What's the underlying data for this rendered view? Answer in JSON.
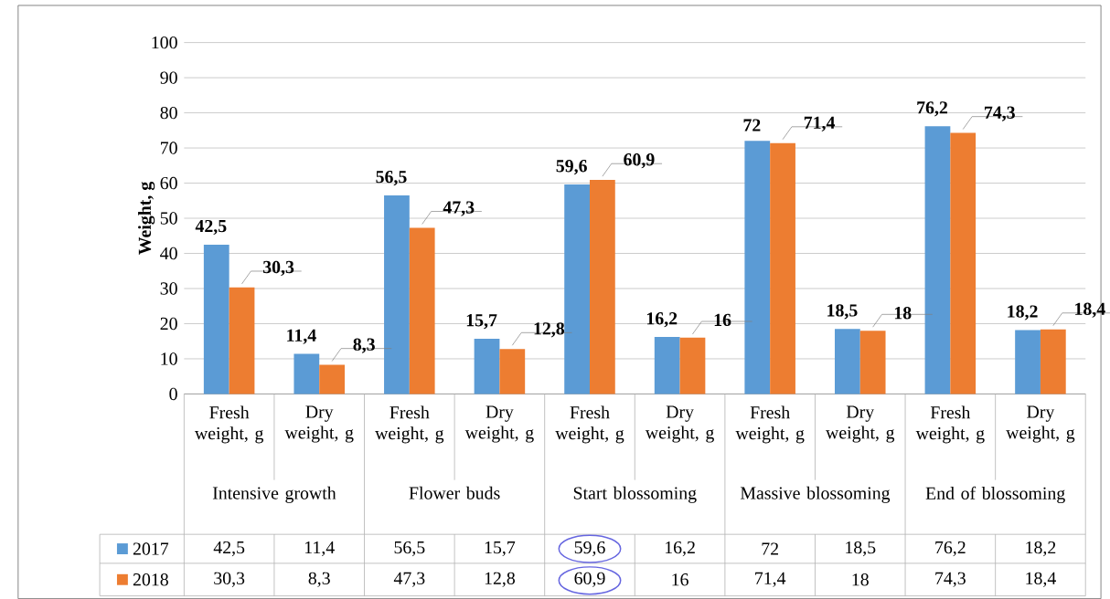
{
  "chart_data": {
    "type": "bar",
    "ylabel": "Weight, g",
    "categories": [
      "Fresh weight, g",
      "Dry weight, g",
      "Fresh weight, g",
      "Dry weight, g",
      "Fresh weight, g",
      "Dry weight, g",
      "Fresh weight, g",
      "Dry weight, g",
      "Fresh weight, g",
      "Dry weight, g"
    ],
    "annotations": [
      "Intensive growth",
      "Flower buds",
      "Start blossoming",
      "Massive blossoming",
      "End of blossoming"
    ],
    "series": [
      {
        "name": "2017",
        "color": "#5b9bd5",
        "values": [
          42.5,
          11.4,
          56.5,
          15.7,
          59.6,
          16.2,
          72,
          18.5,
          76.2,
          18.2
        ],
        "value_labels": [
          "42,5",
          "11,4",
          "56,5",
          "15,7",
          "59,6",
          "16,2",
          "72",
          "18,5",
          "76,2",
          "18,2"
        ]
      },
      {
        "name": "2018",
        "color": "#ed7d31",
        "values": [
          30.3,
          8.3,
          47.3,
          12.8,
          60.9,
          16,
          71.4,
          18,
          74.3,
          18.4
        ],
        "value_labels": [
          "30,3",
          "8,3",
          "47,3",
          "12,8",
          "60,9",
          "16",
          "71,4",
          "18",
          "74,3",
          "18,4"
        ]
      }
    ],
    "ylim": [
      0,
      100
    ],
    "yticks": [
      0,
      10,
      20,
      30,
      40,
      50,
      60,
      70,
      80,
      90,
      100
    ],
    "grid": "y",
    "legend": "bottom"
  }
}
